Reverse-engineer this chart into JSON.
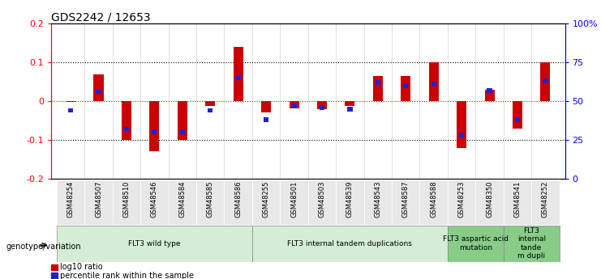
{
  "title": "GDS2242 / 12653",
  "samples": [
    "GSM48254",
    "GSM48507",
    "GSM48510",
    "GSM48546",
    "GSM48584",
    "GSM48585",
    "GSM48586",
    "GSM48255",
    "GSM48501",
    "GSM48503",
    "GSM48539",
    "GSM48543",
    "GSM48587",
    "GSM48588",
    "GSM48253",
    "GSM48350",
    "GSM48541",
    "GSM48252"
  ],
  "log10_ratio": [
    -0.003,
    0.07,
    -0.1,
    -0.13,
    -0.1,
    -0.012,
    0.14,
    -0.03,
    -0.018,
    -0.02,
    -0.012,
    0.065,
    0.065,
    0.1,
    -0.12,
    0.03,
    -0.07,
    0.1
  ],
  "percentile_rank": [
    44,
    56,
    32,
    30,
    30,
    44,
    65,
    38,
    47,
    46,
    45,
    62,
    60,
    61,
    28,
    57,
    38,
    63
  ],
  "ylim_left": [
    -0.2,
    0.2
  ],
  "ylim_right": [
    0,
    100
  ],
  "yticks_left": [
    -0.2,
    -0.1,
    0.0,
    0.1,
    0.2
  ],
  "yticks_right": [
    0,
    25,
    50,
    75,
    100
  ],
  "yticks_right_labels": [
    "0",
    "25",
    "50",
    "75",
    "100%"
  ],
  "red_color": "#cc0000",
  "blue_color": "#2222cc",
  "groups": [
    {
      "label": "FLT3 wild type",
      "start": 0,
      "end": 6,
      "color": "#d4edd4"
    },
    {
      "label": "FLT3 internal tandem duplications",
      "start": 7,
      "end": 13,
      "color": "#d4edd4"
    },
    {
      "label": "FLT3 aspartic acid\nmutation",
      "start": 14,
      "end": 15,
      "color": "#88cc88"
    },
    {
      "label": "FLT3\ninternal\ntande\nm dupli",
      "start": 16,
      "end": 17,
      "color": "#88cc88"
    }
  ],
  "legend_red": "log10 ratio",
  "legend_blue": "percentile rank within the sample",
  "genotype_label": "genotype/variation"
}
